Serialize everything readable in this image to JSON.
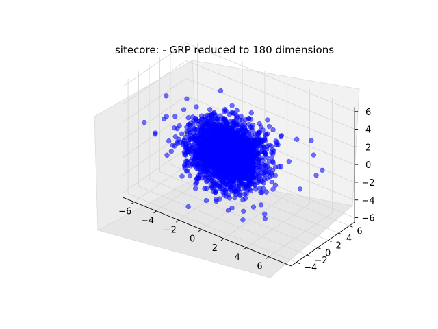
{
  "chart_data": {
    "type": "scatter",
    "projection": "3d",
    "title": "sitecore: - GRP reduced to 180 dimensions",
    "xlabel": "",
    "ylabel": "",
    "zlabel": "",
    "grid": true,
    "legend": "none",
    "marker_color": "#0000ff",
    "marker_alpha": 0.55,
    "xlim": [
      -7,
      8
    ],
    "ylim": [
      -5,
      7
    ],
    "zlim": [
      -6.5,
      6.5
    ],
    "x_ticks": [
      -6,
      -4,
      -2,
      0,
      2,
      4,
      6
    ],
    "x_tick_labels": [
      "−6",
      "−4",
      "−2",
      "0",
      "2",
      "4",
      "6"
    ],
    "y_ticks": [
      -4,
      -2,
      0,
      2,
      4,
      6
    ],
    "y_tick_labels": [
      "−4",
      "−2",
      "0",
      "2",
      "4",
      "6"
    ],
    "z_ticks": [
      -6,
      -4,
      -2,
      0,
      2,
      4,
      6
    ],
    "z_tick_labels": [
      "−6",
      "−4",
      "−2",
      "0",
      "2",
      "4",
      "6"
    ],
    "series": [
      {
        "point_count": 2500,
        "distribution": "isotropic gaussian centered at origin",
        "center": [
          0,
          0,
          0
        ],
        "std": 1.5,
        "outliers": [
          [
            6.5,
            2.0,
            4.0
          ],
          [
            5.5,
            -1.5,
            5.5
          ],
          [
            5.2,
            -1.0,
            5.0
          ],
          [
            6.0,
            3.5,
            1.5
          ],
          [
            7.0,
            3.0,
            0.5
          ],
          [
            -6.5,
            -2.0,
            1.0
          ],
          [
            -6.0,
            -1.0,
            -0.5
          ],
          [
            -5.5,
            1.0,
            -3.0
          ],
          [
            -4.5,
            2.0,
            -4.5
          ],
          [
            -4.0,
            -3.0,
            -1.0
          ],
          [
            2.5,
            -4.5,
            -3.0
          ],
          [
            4.5,
            -2.5,
            -4.0
          ],
          [
            3.0,
            -3.5,
            -4.5
          ],
          [
            -1.5,
            4.0,
            3.0
          ],
          [
            5.5,
            2.0,
            -2.0
          ],
          [
            6.0,
            4.0,
            -1.0
          ],
          [
            4.5,
            3.5,
            2.5
          ],
          [
            -3.5,
            3.5,
            -2.0
          ]
        ]
      }
    ]
  }
}
